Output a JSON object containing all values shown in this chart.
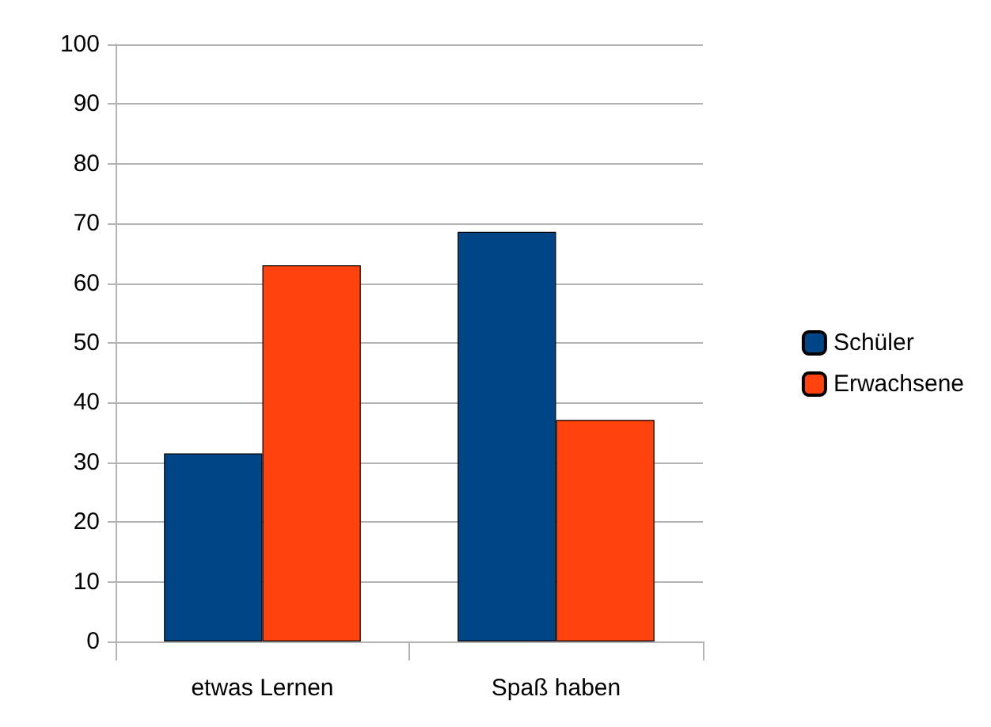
{
  "chart_data": {
    "type": "bar",
    "categories": [
      "etwas Lernen",
      "Spaß haben"
    ],
    "series": [
      {
        "name": "Schüler",
        "color": "#004586",
        "values": [
          31.5,
          68.6
        ]
      },
      {
        "name": "Erwachsene",
        "color": "#ff420e",
        "values": [
          63.0,
          37.1
        ]
      }
    ],
    "ylim": [
      0,
      100
    ],
    "yticks": [
      0,
      10,
      20,
      30,
      40,
      50,
      60,
      70,
      80,
      90,
      100
    ],
    "grid": "y",
    "legend": "right"
  }
}
